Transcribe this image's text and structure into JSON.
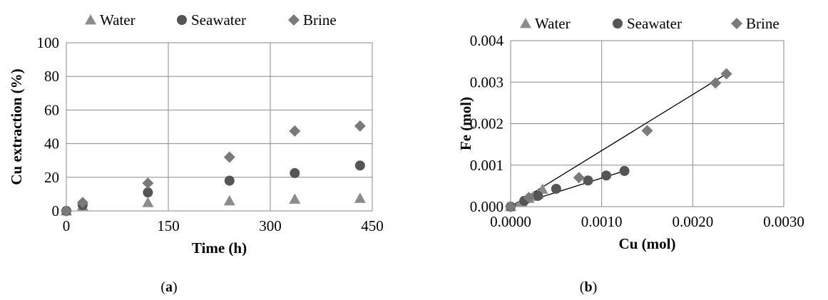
{
  "figure": {
    "panel_a_label": "a",
    "panel_b_label": "b"
  },
  "chart_data": [
    {
      "type": "scatter",
      "panel": "a",
      "title": "",
      "xlabel": "Time (h)",
      "ylabel": "Cu extraction (%)",
      "xlim": [
        0,
        450
      ],
      "ylim": [
        0,
        100
      ],
      "xticks": [
        0,
        150,
        300,
        450
      ],
      "yticks": [
        0,
        20,
        40,
        60,
        80,
        100
      ],
      "xtick_labels": [
        "0",
        "150",
        "300",
        "450"
      ],
      "ytick_labels": [
        "0",
        "20",
        "40",
        "60",
        "80",
        "100"
      ],
      "grid": true,
      "legend_position": "top",
      "series": [
        {
          "name": "Water",
          "marker": "triangle",
          "color": "#8c8c8c",
          "points": [
            [
              0,
              0
            ],
            [
              24,
              3
            ],
            [
              120,
              5
            ],
            [
              240,
              6
            ],
            [
              336,
              7
            ],
            [
              432,
              7.5
            ]
          ]
        },
        {
          "name": "Seawater",
          "marker": "circle",
          "color": "#555555",
          "points": [
            [
              0,
              0
            ],
            [
              24,
              3.5
            ],
            [
              120,
              11
            ],
            [
              240,
              18
            ],
            [
              336,
              22.5
            ],
            [
              432,
              27
            ]
          ]
        },
        {
          "name": "Brine",
          "marker": "diamond",
          "color": "#7a7a7a",
          "points": [
            [
              0,
              0
            ],
            [
              24,
              5
            ],
            [
              120,
              16.5
            ],
            [
              240,
              32
            ],
            [
              336,
              47.5
            ],
            [
              432,
              50.5
            ]
          ]
        }
      ]
    },
    {
      "type": "scatter",
      "panel": "b",
      "title": "",
      "xlabel": "Cu (mol)",
      "ylabel": "Fe (mol)",
      "xlim": [
        0,
        0.003
      ],
      "ylim": [
        0,
        0.004
      ],
      "xticks": [
        0,
        0.001,
        0.002,
        0.003
      ],
      "yticks": [
        0,
        0.001,
        0.002,
        0.003,
        0.004
      ],
      "xtick_labels": [
        "0.0000",
        "0.0010",
        "0.0020",
        "0.0030"
      ],
      "ytick_labels": [
        "0.000",
        "0.001",
        "0.002",
        "0.003",
        "0.004"
      ],
      "grid": true,
      "legend_position": "top",
      "series": [
        {
          "name": "Water",
          "marker": "triangle",
          "color": "#8c8c8c",
          "points": [
            [
              0,
              0
            ],
            [
              0.00012,
              0.00012
            ],
            [
              0.0002,
              0.0002
            ],
            [
              0.00025,
              0.00025
            ],
            [
              0.0003,
              0.0003
            ],
            [
              0.00035,
              0.00042
            ]
          ]
        },
        {
          "name": "Seawater",
          "marker": "circle",
          "color": "#555555",
          "points": [
            [
              0,
              0
            ],
            [
              0.00015,
              0.00014
            ],
            [
              0.0003,
              0.00026
            ],
            [
              0.0005,
              0.00043
            ],
            [
              0.00085,
              0.00063
            ],
            [
              0.00105,
              0.00075
            ],
            [
              0.00125,
              0.00086
            ]
          ]
        },
        {
          "name": "Brine",
          "marker": "diamond",
          "color": "#7a7a7a",
          "points": [
            [
              0,
              0
            ],
            [
              0.0002,
              0.00022
            ],
            [
              0.00075,
              0.0007
            ],
            [
              0.0015,
              0.00183
            ],
            [
              0.00225,
              0.00298
            ],
            [
              0.00237,
              0.0032
            ]
          ]
        }
      ],
      "trendlines": [
        {
          "series": "Brine",
          "from": [
            0,
            0
          ],
          "to": [
            0.00237,
            0.0032
          ]
        },
        {
          "series": "Seawater",
          "from": [
            0,
            0
          ],
          "to": [
            0.00125,
            0.00086
          ]
        }
      ]
    }
  ]
}
